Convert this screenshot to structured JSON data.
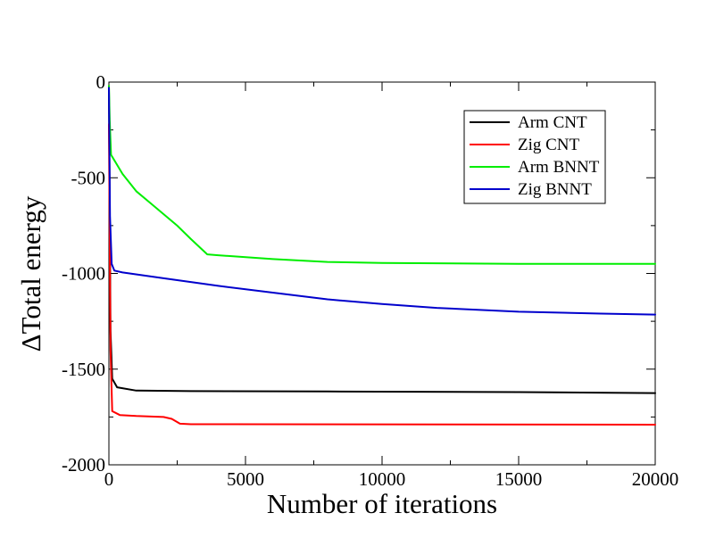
{
  "chart_data": {
    "type": "line",
    "title": "",
    "xlabel": "Number of iterations",
    "ylabel": "ΔTotal energy",
    "xlim": [
      0,
      20000
    ],
    "ylim": [
      -2000,
      0
    ],
    "x_ticks": [
      "0",
      "5000",
      "10000",
      "15000",
      "20000"
    ],
    "y_ticks": [
      "0",
      "-500",
      "-1000",
      "-1500",
      "-2000"
    ],
    "grid": false,
    "legend_position": "top-right",
    "series": [
      {
        "name": "Arm CNT",
        "color": "#000000",
        "points": [
          [
            0,
            -20
          ],
          [
            60,
            -1300
          ],
          [
            120,
            -1550
          ],
          [
            300,
            -1595
          ],
          [
            1000,
            -1612
          ],
          [
            3000,
            -1615
          ],
          [
            8000,
            -1617
          ],
          [
            15000,
            -1620
          ],
          [
            20000,
            -1625
          ]
        ]
      },
      {
        "name": "Zig CNT",
        "color": "#ff0000",
        "points": [
          [
            0,
            -220
          ],
          [
            60,
            -1400
          ],
          [
            120,
            -1720
          ],
          [
            400,
            -1740
          ],
          [
            1000,
            -1745
          ],
          [
            2000,
            -1750
          ],
          [
            2300,
            -1760
          ],
          [
            2600,
            -1785
          ],
          [
            3000,
            -1788
          ],
          [
            20000,
            -1790
          ]
        ]
      },
      {
        "name": "Arm BNNT",
        "color": "#00ee00",
        "points": [
          [
            0,
            -20
          ],
          [
            30,
            -200
          ],
          [
            80,
            -380
          ],
          [
            500,
            -480
          ],
          [
            1000,
            -570
          ],
          [
            1500,
            -630
          ],
          [
            2000,
            -690
          ],
          [
            2500,
            -750
          ],
          [
            3000,
            -820
          ],
          [
            3300,
            -860
          ],
          [
            3600,
            -900
          ],
          [
            4000,
            -905
          ],
          [
            6000,
            -925
          ],
          [
            8000,
            -940
          ],
          [
            10000,
            -945
          ],
          [
            15000,
            -950
          ],
          [
            20000,
            -950
          ]
        ]
      },
      {
        "name": "Zig BNNT",
        "color": "#0000cc",
        "points": [
          [
            0,
            -30
          ],
          [
            40,
            -700
          ],
          [
            100,
            -950
          ],
          [
            200,
            -985
          ],
          [
            500,
            -995
          ],
          [
            2000,
            -1025
          ],
          [
            4000,
            -1065
          ],
          [
            6000,
            -1100
          ],
          [
            8000,
            -1135
          ],
          [
            10000,
            -1160
          ],
          [
            12000,
            -1180
          ],
          [
            15000,
            -1200
          ],
          [
            18000,
            -1210
          ],
          [
            20000,
            -1215
          ]
        ]
      }
    ]
  }
}
